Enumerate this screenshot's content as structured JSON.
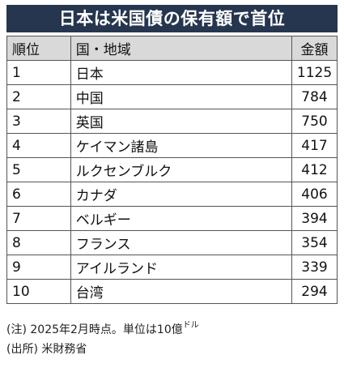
{
  "title": "日本は米国債の保有額で首位",
  "table": {
    "headers": {
      "rank": "順位",
      "country": "国・地域",
      "amount": "金額"
    },
    "rows": [
      {
        "rank": "1",
        "country": "日本",
        "amount": "1125"
      },
      {
        "rank": "2",
        "country": "中国",
        "amount": "784"
      },
      {
        "rank": "3",
        "country": "英国",
        "amount": "750"
      },
      {
        "rank": "4",
        "country": "ケイマン諸島",
        "amount": "417"
      },
      {
        "rank": "5",
        "country": "ルクセンブルク",
        "amount": "412"
      },
      {
        "rank": "6",
        "country": "カナダ",
        "amount": "406"
      },
      {
        "rank": "7",
        "country": "ベルギー",
        "amount": "394"
      },
      {
        "rank": "8",
        "country": "フランス",
        "amount": "354"
      },
      {
        "rank": "9",
        "country": "アイルランド",
        "amount": "339"
      },
      {
        "rank": "10",
        "country": "台湾",
        "amount": "294"
      }
    ]
  },
  "notes": {
    "note_text": "(注) 2025年2月時点。単位は10億",
    "note_unit": "ドル",
    "source": "(出所) 米財務省"
  },
  "colors": {
    "title_background": "#26364f",
    "header_background": "#d9d9d9",
    "border": "#555555"
  }
}
